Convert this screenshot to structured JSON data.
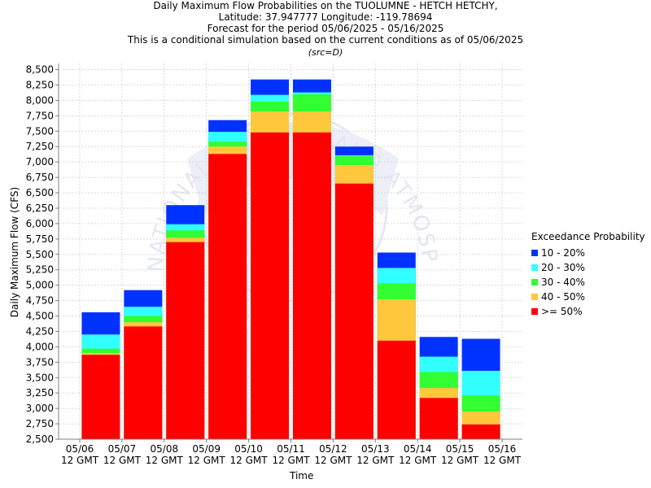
{
  "title": {
    "line1": "Daily Maximum Flow Probabilities on the TUOLUMNE - HETCH HETCHY,",
    "line2": "Latitude: 37.947777 Longitude: -119.78694",
    "line3": "Forecast for the period 05/06/2025 - 05/16/2025",
    "line4": "This is a conditional simulation based on the current conditions as of 05/06/2025",
    "line5": "(src=D)"
  },
  "watermark": {
    "text": "NATIONAL OCEANIC AND ATMOSPHERIC ADMINISTRATION"
  },
  "colors": {
    "ge50": "#ff0000",
    "p40_50": "#ffc83c",
    "p30_40": "#32ff32",
    "p20_30": "#32ffff",
    "p10_20": "#0032ff",
    "grid": "#d8d8d8",
    "axis": "#808080"
  },
  "legend": {
    "title": "Exceedance Probability",
    "items": [
      {
        "label": "10 - 20%",
        "color": "#0032ff"
      },
      {
        "label": "20 - 30%",
        "color": "#32ffff"
      },
      {
        "label": "30 - 40%",
        "color": "#32ff32"
      },
      {
        "label": "40 - 50%",
        "color": "#ffc83c"
      },
      {
        "label": ">= 50%",
        "color": "#ff0000"
      }
    ]
  },
  "chart_data": {
    "type": "bar",
    "title": "Daily Maximum Flow Probabilities on the TUOLUMNE - HETCH HETCHY,",
    "xlabel": "Time",
    "ylabel": "Daily Maximum Flow (CFS)",
    "ylim": [
      2500,
      8600
    ],
    "yticks": [
      2500,
      2750,
      3000,
      3250,
      3500,
      3750,
      4000,
      4250,
      4500,
      4750,
      5000,
      5250,
      5500,
      5750,
      6000,
      6250,
      6500,
      6750,
      7000,
      7250,
      7500,
      7750,
      8000,
      8250,
      8500
    ],
    "ytick_labels": [
      "2,500",
      "2,750",
      "3,000",
      "3,250",
      "3,500",
      "3,750",
      "4,000",
      "4,250",
      "4,500",
      "4,750",
      "5,000",
      "5,250",
      "5,500",
      "5,750",
      "6,000",
      "6,250",
      "6,500",
      "6,750",
      "7,000",
      "7,250",
      "7,500",
      "7,750",
      "8,000",
      "8,250",
      "8,500"
    ],
    "xtick_dates": [
      "05/06",
      "05/07",
      "05/08",
      "05/09",
      "05/10",
      "05/11",
      "05/12",
      "05/13",
      "05/14",
      "05/15",
      "05/16"
    ],
    "xtick_time": "12 GMT",
    "grid": true,
    "legend_position": "right",
    "series": [
      {
        "name": ">= 50%",
        "values": [
          3870,
          4330,
          5700,
          7130,
          7480,
          7480,
          6650,
          4100,
          3170,
          2740
        ]
      },
      {
        "name": "40 - 50%",
        "values": [
          3900,
          4400,
          5770,
          7250,
          7820,
          7820,
          6950,
          4770,
          3330,
          2950
        ]
      },
      {
        "name": "30 - 40%",
        "values": [
          3970,
          4500,
          5890,
          7330,
          7980,
          8100,
          7100,
          5030,
          3590,
          3210
        ]
      },
      {
        "name": "20 - 30%",
        "values": [
          4200,
          4650,
          5990,
          7490,
          8090,
          8130,
          7110,
          5280,
          3840,
          3610
        ]
      },
      {
        "name": "10 - 20%",
        "values": [
          4560,
          4920,
          6300,
          7680,
          8340,
          8340,
          7250,
          5530,
          4160,
          4130
        ]
      }
    ]
  }
}
